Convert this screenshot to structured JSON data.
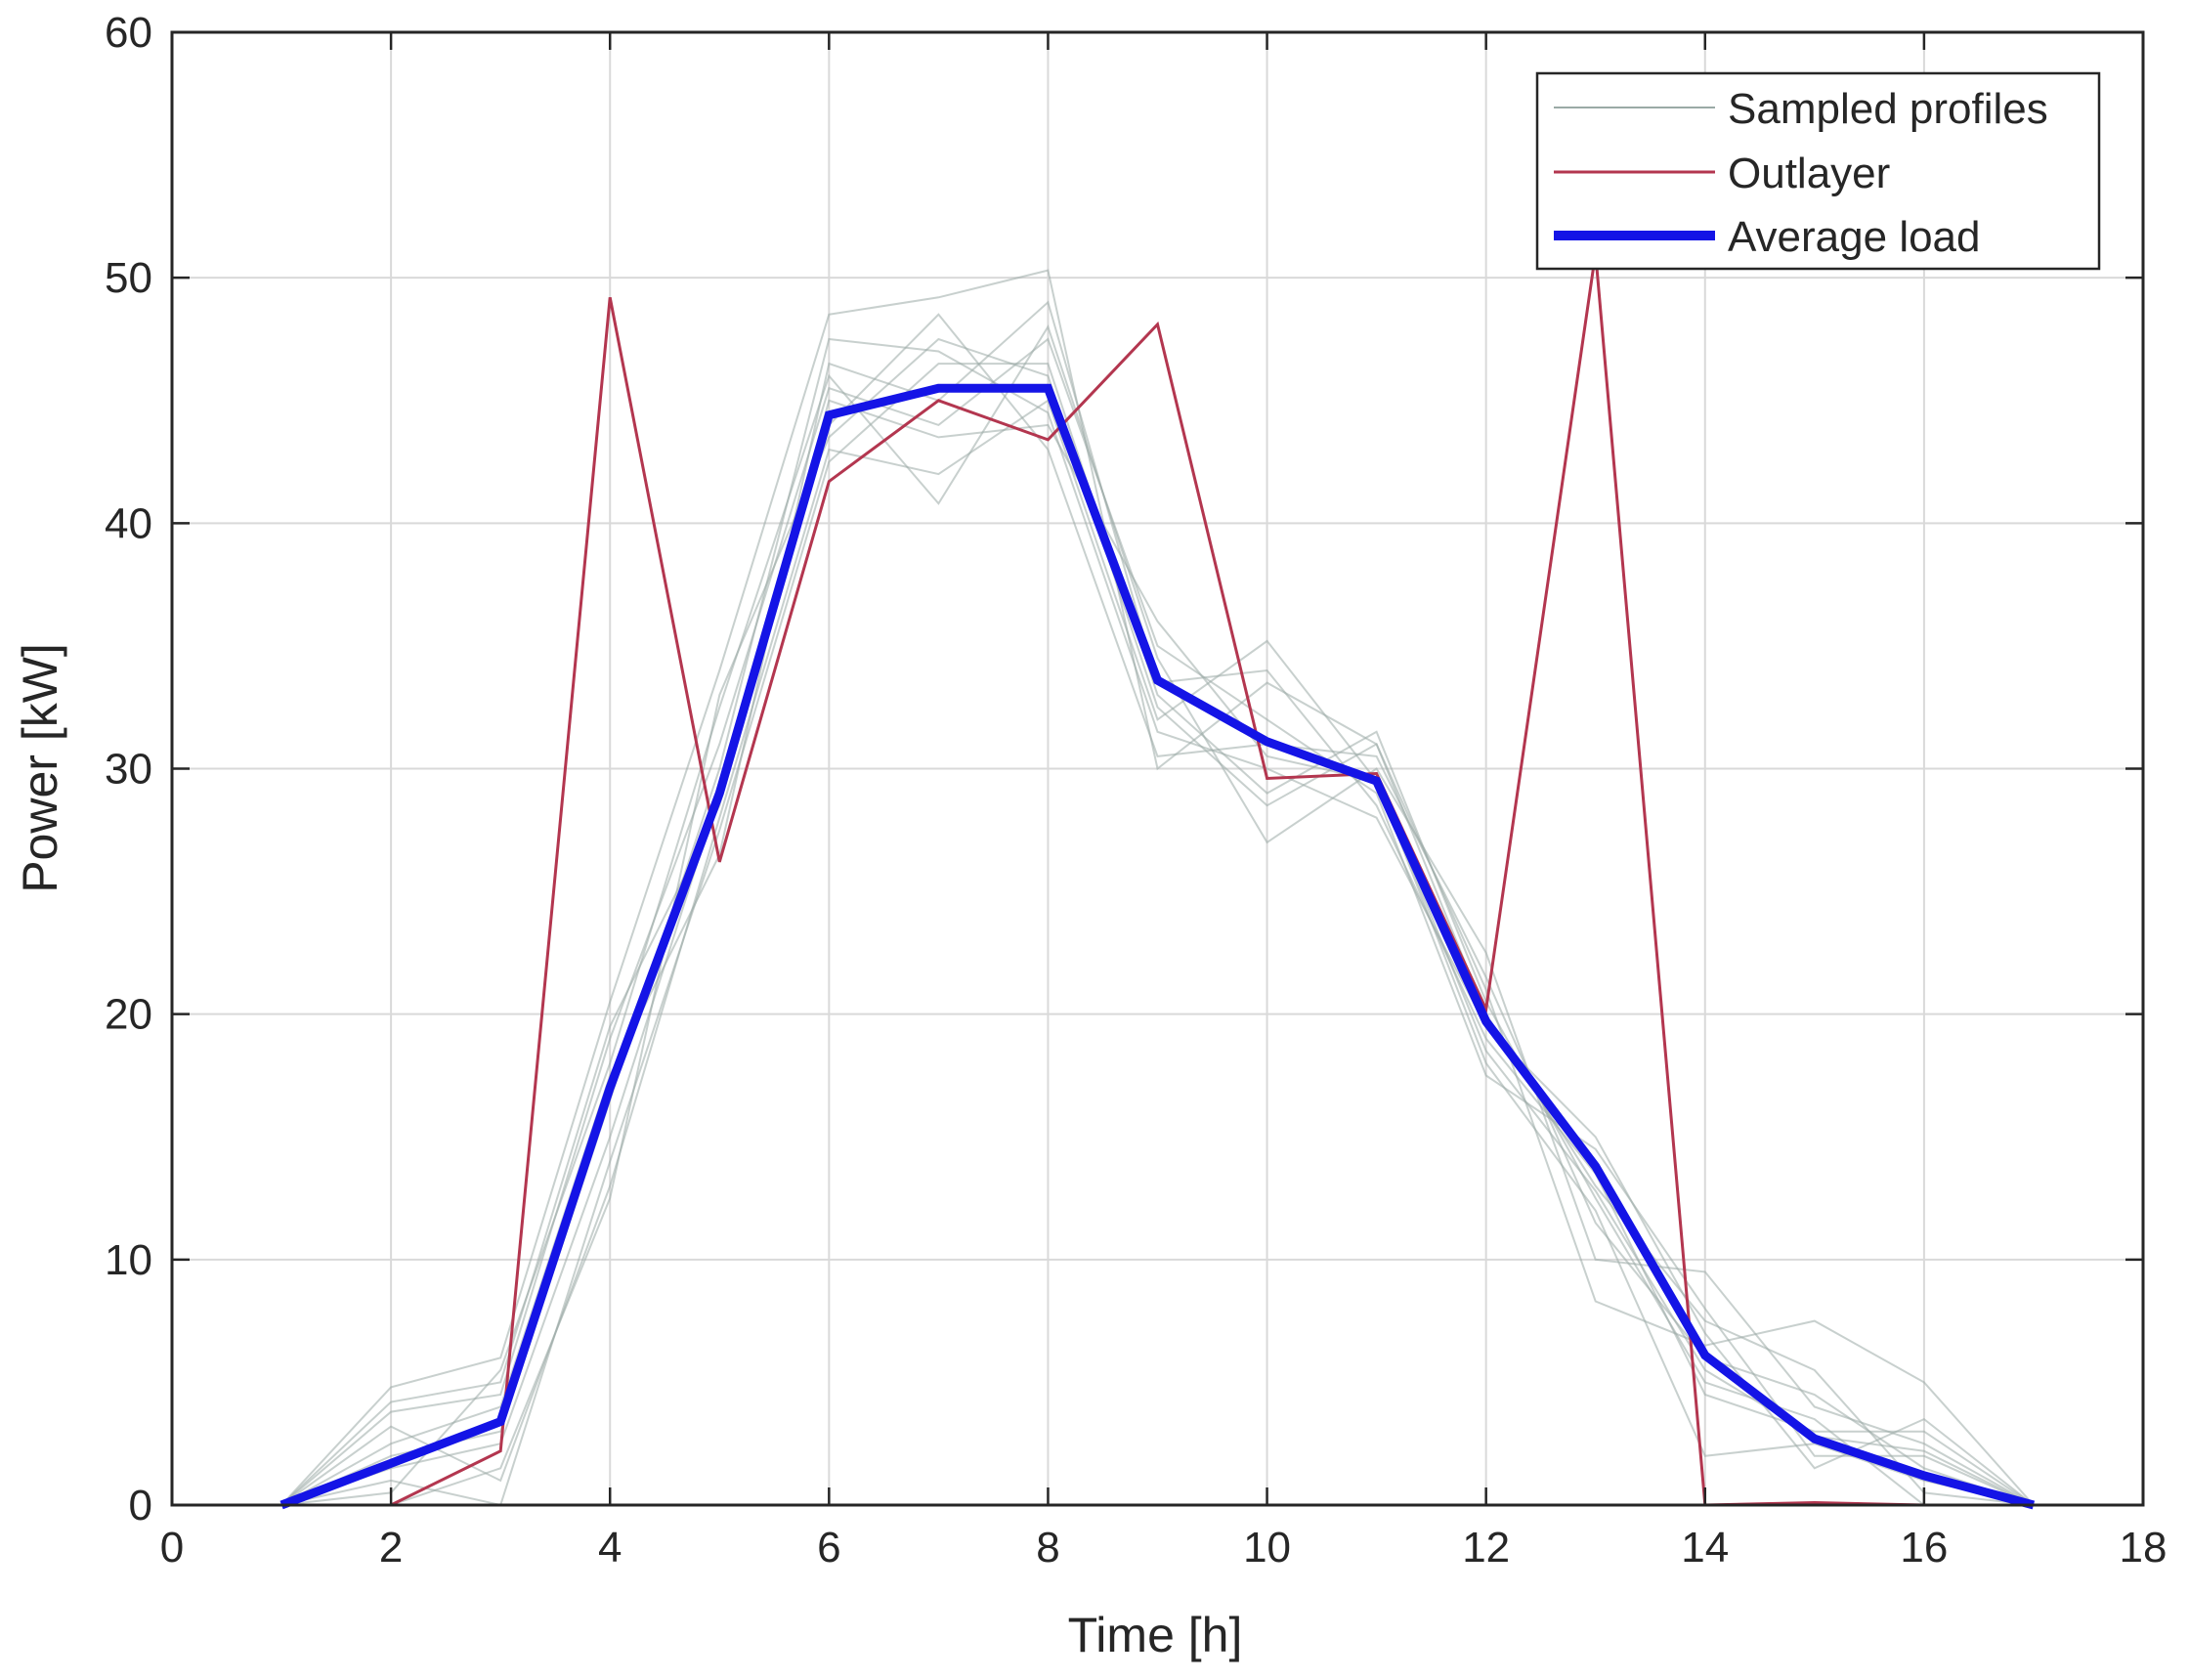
{
  "colors": {
    "sampled": "#9aaaa6",
    "outlier": "#b3364f",
    "average": "#1414e6",
    "grid": "#d9d9d9",
    "axis": "#262626"
  },
  "chart_data": {
    "type": "line",
    "title": "",
    "xlabel": "Time [h]",
    "ylabel": "Power [kW]",
    "xlim": [
      0,
      18
    ],
    "ylim": [
      0,
      60
    ],
    "xticks": [
      0,
      2,
      4,
      6,
      8,
      10,
      12,
      14,
      16,
      18
    ],
    "yticks": [
      0,
      10,
      20,
      30,
      40,
      50,
      60
    ],
    "grid": true,
    "legend_position": "top-right",
    "x": [
      1,
      2,
      3,
      4,
      5,
      6,
      7,
      8,
      9,
      10,
      11,
      12,
      13,
      14,
      15,
      16,
      17
    ],
    "series": [
      {
        "name": "Sampled profiles",
        "kind": "sampled",
        "values": [
          0,
          4.8,
          6.0,
          20.5,
          34.0,
          48.5,
          49.2,
          50.3,
          30.0,
          33.5,
          31.0,
          21.0,
          8.3,
          6.5,
          7.5,
          5.0,
          0
        ]
      },
      {
        "name": "Sampled profiles",
        "kind": "sampled",
        "values": [
          0,
          3.2,
          1.0,
          13.0,
          28.0,
          43.0,
          42.0,
          45.0,
          32.0,
          35.2,
          29.5,
          18.0,
          12.0,
          2.0,
          2.5,
          1.0,
          0
        ]
      },
      {
        "name": "Sampled profiles",
        "kind": "sampled",
        "values": [
          0,
          0.5,
          5.5,
          18.0,
          32.5,
          46.0,
          40.8,
          48.0,
          34.5,
          27.0,
          30.0,
          22.5,
          10.0,
          9.5,
          4.0,
          2.5,
          0
        ]
      },
      {
        "name": "Sampled profiles",
        "kind": "sampled",
        "values": [
          0,
          2.0,
          3.0,
          16.5,
          30.0,
          47.5,
          47.0,
          44.5,
          31.5,
          30.0,
          28.0,
          19.5,
          15.0,
          7.0,
          1.5,
          3.5,
          0
        ]
      },
      {
        "name": "Sampled profiles",
        "kind": "sampled",
        "values": [
          0,
          1.0,
          0,
          14.0,
          27.5,
          42.5,
          46.5,
          46.5,
          33.0,
          29.0,
          31.5,
          20.5,
          12.5,
          5.0,
          3.5,
          0,
          0
        ]
      },
      {
        "name": "Sampled profiles",
        "kind": "sampled",
        "values": [
          0,
          3.8,
          4.5,
          19.0,
          31.0,
          45.5,
          44.0,
          47.5,
          35.0,
          32.0,
          29.0,
          17.5,
          14.5,
          8.0,
          2.0,
          2.0,
          0
        ]
      },
      {
        "name": "Sampled profiles",
        "kind": "sampled",
        "values": [
          0,
          1.5,
          2.5,
          15.0,
          29.0,
          44.0,
          48.5,
          43.0,
          30.5,
          31.0,
          30.5,
          21.5,
          11.5,
          6.0,
          4.5,
          1.5,
          0
        ]
      },
      {
        "name": "Sampled profiles",
        "kind": "sampled",
        "values": [
          0,
          2.5,
          4.0,
          17.5,
          26.5,
          46.5,
          45.0,
          49.0,
          33.5,
          34.0,
          28.5,
          19.0,
          13.5,
          4.5,
          3.0,
          3.0,
          0
        ]
      },
      {
        "name": "Sampled profiles",
        "kind": "sampled",
        "values": [
          0,
          0,
          1.5,
          12.5,
          33.0,
          43.5,
          47.5,
          46.0,
          32.5,
          28.5,
          31.0,
          20.0,
          13.0,
          7.5,
          5.5,
          0.5,
          0
        ]
      },
      {
        "name": "Sampled profiles",
        "kind": "sampled",
        "values": [
          0,
          4.2,
          5.0,
          19.5,
          28.5,
          45.0,
          43.5,
          44.0,
          36.0,
          30.5,
          29.5,
          18.5,
          12.8,
          5.5,
          2.8,
          2.2,
          0
        ]
      },
      {
        "name": "Outlayer",
        "kind": "outlier",
        "values": [
          0,
          0,
          2.2,
          49.2,
          26.2,
          41.7,
          45.0,
          43.4,
          48.1,
          29.6,
          29.8,
          20.2,
          51.0,
          0,
          0.1,
          0,
          0
        ]
      },
      {
        "name": "Average load",
        "kind": "average",
        "values": [
          0,
          1.7,
          3.4,
          17.0,
          29.0,
          44.4,
          45.5,
          45.5,
          33.6,
          31.1,
          29.5,
          19.7,
          13.8,
          6.1,
          2.7,
          1.2,
          0
        ]
      }
    ],
    "legend": [
      "Sampled profiles",
      "Outlayer",
      "Average load"
    ]
  }
}
